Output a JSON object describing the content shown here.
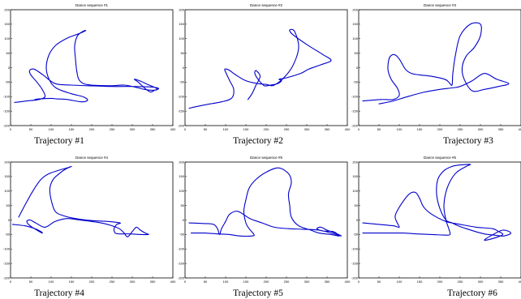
{
  "chart_data": [
    {
      "type": "line",
      "title": "Dance sequence #1",
      "caption": "Trajectory #1",
      "xlim": [
        0,
        400
      ],
      "ylim": [
        -200,
        200
      ],
      "xticks": [
        0,
        50,
        100,
        150,
        200,
        250,
        300,
        350,
        400
      ],
      "yticks": [
        -200,
        -150,
        -100,
        -50,
        0,
        50,
        100,
        150,
        200
      ],
      "grid": false,
      "color": "#0000cc",
      "series": [
        {
          "x": [
            10,
            40,
            70,
            85,
            78,
            65,
            50,
            47,
            58,
            80,
            110,
            150,
            200,
            250,
            300,
            350,
            365,
            355,
            345,
            330,
            315,
            305,
            318,
            338,
            355,
            362,
            350,
            330,
            315,
            300,
            280,
            255,
            230,
            200,
            180,
            168,
            163,
            160,
            158,
            165,
            178,
            185,
            170,
            140,
            112,
            95,
            88,
            95,
            112,
            150,
            178,
            190,
            175,
            140,
            115,
            100,
            70,
            60
          ],
          "y": [
            -120,
            -115,
            -110,
            -100,
            -75,
            -50,
            -25,
            -10,
            -5,
            -25,
            -55,
            -60,
            -63,
            -65,
            -65,
            -67,
            -72,
            -78,
            -84,
            -70,
            -50,
            -40,
            -45,
            -58,
            -68,
            -75,
            -78,
            -75,
            -70,
            -65,
            -60,
            -62,
            -62,
            -60,
            -55,
            -40,
            -10,
            30,
            75,
            110,
            125,
            128,
            118,
            102,
            78,
            45,
            0,
            -40,
            -70,
            -90,
            -100,
            -112,
            -118,
            -110,
            -108,
            -106,
            -108,
            -110
          ]
        }
      ]
    },
    {
      "type": "line",
      "title": "Dance sequence #2",
      "caption": "Trajectory #2",
      "xlim": [
        0,
        400
      ],
      "ylim": [
        -200,
        200
      ],
      "xticks": [
        0,
        50,
        100,
        150,
        200,
        250,
        300,
        350,
        400
      ],
      "yticks": [
        -200,
        -150,
        -100,
        -50,
        0,
        50,
        100,
        150,
        200
      ],
      "grid": false,
      "color": "#0000cc",
      "series": [
        {
          "x": [
            10,
            50,
            90,
            115,
            120,
            110,
            100,
            98,
            108,
            125,
            150,
            180,
            200,
            212,
            220,
            240,
            265,
            280,
            270,
            258,
            265,
            300,
            340,
            360,
            335,
            305,
            285,
            250,
            232,
            238,
            228,
            210,
            195,
            180,
            172,
            175,
            185,
            175,
            165,
            155
          ],
          "y": [
            -140,
            -128,
            -118,
            -105,
            -75,
            -45,
            -15,
            -5,
            -8,
            -25,
            -45,
            -55,
            -58,
            -62,
            -60,
            -40,
            5,
            70,
            125,
            130,
            115,
            80,
            45,
            25,
            10,
            -5,
            -20,
            -35,
            -40,
            -45,
            -55,
            -60,
            -62,
            -40,
            -20,
            -10,
            -30,
            -60,
            -90,
            -110
          ]
        }
      ]
    },
    {
      "type": "line",
      "title": "Dance sequence #3",
      "caption": "Trajectory #3",
      "xlim": [
        0,
        400
      ],
      "ylim": [
        -200,
        200
      ],
      "xticks": [
        0,
        50,
        100,
        150,
        200,
        250,
        300,
        350,
        400
      ],
      "yticks": [
        -200,
        -150,
        -100,
        -50,
        0,
        50,
        100,
        150,
        200
      ],
      "grid": false,
      "color": "#0000cc",
      "series": [
        {
          "x": [
            10,
            55,
            85,
            100,
            95,
            80,
            72,
            76,
            88,
            100,
            115,
            130,
            150,
            180,
            212,
            222,
            230,
            232,
            238,
            250,
            275,
            300,
            300,
            285,
            265,
            255,
            260,
            280,
            310,
            345,
            370,
            340,
            310,
            280,
            250,
            230,
            200,
            160,
            120,
            85,
            50
          ],
          "y": [
            -115,
            -110,
            -110,
            -95,
            -70,
            -40,
            -5,
            35,
            45,
            30,
            -5,
            -20,
            -25,
            -30,
            -40,
            -50,
            -60,
            -20,
            40,
            110,
            150,
            150,
            110,
            70,
            40,
            0,
            -40,
            -80,
            -75,
            -65,
            -55,
            -40,
            -20,
            -45,
            -65,
            -70,
            -75,
            -85,
            -100,
            -115,
            -125
          ]
        }
      ]
    },
    {
      "type": "line",
      "title": "Dance sequence #4",
      "caption": "Trajectory #4",
      "xlim": [
        0,
        400
      ],
      "ylim": [
        -200,
        200
      ],
      "xticks": [
        0,
        50,
        100,
        150,
        200,
        250,
        300,
        350,
        400
      ],
      "yticks": [
        -200,
        -150,
        -100,
        -50,
        0,
        50,
        100,
        150,
        200
      ],
      "grid": false,
      "color": "#0000cc",
      "series": [
        {
          "x": [
            5,
            35,
            60,
            75,
            78,
            65,
            48,
            40,
            48,
            62,
            85,
            110,
            140,
            170,
            200,
            230,
            250,
            268,
            280,
            285,
            290,
            300,
            310,
            320,
            332,
            340,
            320,
            295,
            270,
            258,
            255,
            262,
            270,
            240,
            200,
            160,
            130,
            110,
            100,
            97,
            105,
            120,
            135,
            150,
            140,
            120,
            95,
            75,
            55,
            35,
            20
          ],
          "y": [
            -15,
            -20,
            -30,
            -40,
            -45,
            -35,
            -20,
            -5,
            0,
            -10,
            -25,
            -5,
            5,
            0,
            -5,
            -12,
            -20,
            -30,
            -45,
            -55,
            -57,
            -40,
            -25,
            -35,
            -45,
            -50,
            -50,
            -48,
            -48,
            -45,
            -30,
            -15,
            -10,
            -5,
            -2,
            5,
            15,
            30,
            70,
            110,
            140,
            160,
            175,
            185,
            180,
            172,
            160,
            140,
            100,
            50,
            10
          ]
        }
      ]
    },
    {
      "type": "line",
      "title": "Dance sequence #5",
      "caption": "Trajectory #5",
      "xlim": [
        0,
        400
      ],
      "ylim": [
        -200,
        200
      ],
      "xticks": [
        0,
        50,
        100,
        150,
        200,
        250,
        300,
        350,
        400
      ],
      "yticks": [
        -200,
        -150,
        -100,
        -50,
        0,
        50,
        100,
        150,
        200
      ],
      "grid": false,
      "color": "#0000cc",
      "series": [
        {
          "x": [
            10,
            45,
            70,
            80,
            85,
            90,
            100,
            110,
            130,
            160,
            190,
            220,
            255,
            290,
            330,
            360,
            385,
            370,
            350,
            335,
            325,
            340,
            365,
            380,
            360,
            330,
            310,
            280,
            262,
            258,
            255,
            262,
            255,
            230,
            200,
            175,
            158,
            150,
            145,
            150,
            158,
            170,
            165,
            135,
            110,
            80,
            50,
            15
          ],
          "y": [
            -10,
            -12,
            -15,
            -30,
            -50,
            -30,
            -5,
            20,
            30,
            5,
            -10,
            -25,
            -30,
            -32,
            -35,
            -45,
            -55,
            -45,
            -35,
            -25,
            -30,
            -38,
            -40,
            -55,
            -50,
            -45,
            -35,
            -20,
            10,
            50,
            90,
            130,
            160,
            180,
            165,
            140,
            110,
            70,
            30,
            -10,
            -30,
            -50,
            -55,
            -55,
            -50,
            -48,
            -45,
            -45
          ]
        }
      ]
    },
    {
      "type": "line",
      "title": "Dance sequence #6",
      "caption": "Trajectory #6",
      "xlim": [
        0,
        400
      ],
      "ylim": [
        -200,
        200
      ],
      "xticks": [
        0,
        50,
        100,
        150,
        200,
        250,
        300,
        350,
        400
      ],
      "yticks": [
        -200,
        -150,
        -100,
        -50,
        0,
        50,
        100,
        150,
        200
      ],
      "grid": false,
      "color": "#0000cc",
      "series": [
        {
          "x": [
            10,
            50,
            85,
            100,
            95,
            90,
            105,
            125,
            140,
            150,
            160,
            180,
            215,
            250,
            290,
            330,
            345,
            355,
            335,
            310,
            325,
            355,
            375,
            358,
            332,
            310,
            288,
            265,
            245,
            230,
            215,
            200,
            192,
            195,
            210,
            230,
            250,
            275,
            265,
            238,
            218,
            210,
            215,
            222,
            225,
            210,
            180,
            145,
            110,
            75,
            40,
            10
          ],
          "y": [
            -10,
            -15,
            -20,
            -25,
            -10,
            15,
            55,
            90,
            95,
            75,
            45,
            20,
            -5,
            -15,
            -25,
            -30,
            -40,
            -50,
            -62,
            -70,
            -55,
            -35,
            -45,
            -55,
            -52,
            -48,
            -40,
            -30,
            -20,
            -10,
            0,
            40,
            90,
            140,
            170,
            185,
            190,
            192,
            185,
            160,
            110,
            50,
            0,
            -30,
            -50,
            -52,
            -50,
            -48,
            -45,
            -45,
            -45,
            -45
          ]
        }
      ]
    }
  ]
}
